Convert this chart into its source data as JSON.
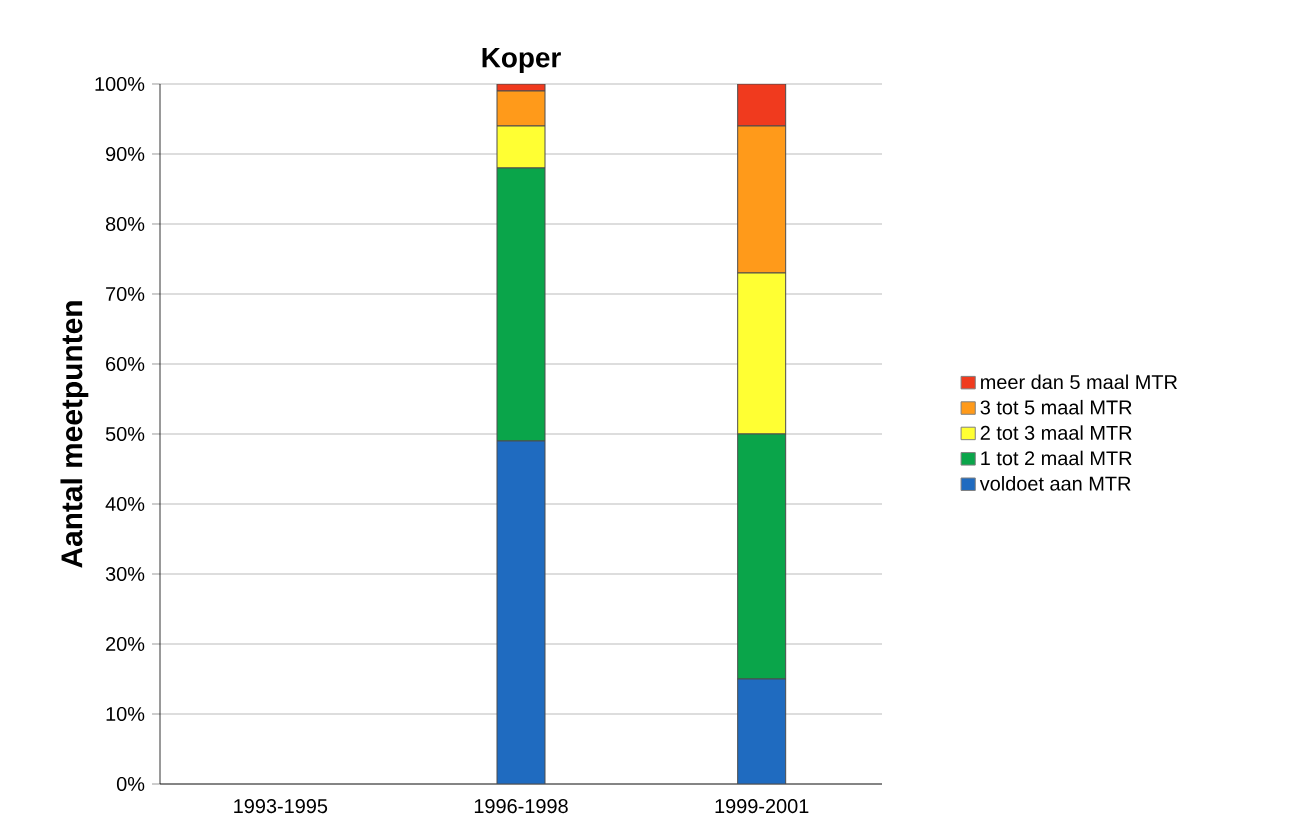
{
  "chart_data": {
    "type": "bar",
    "title": "Koper",
    "ylabel": "Aantal meetpunten",
    "stacked": true,
    "categories": [
      "1993-1995",
      "1996-1998",
      "1999-2001"
    ],
    "series": [
      {
        "name": "voldoet aan MTR",
        "color": "#1f6bc0",
        "values": [
          null,
          49,
          15
        ]
      },
      {
        "name": "1 tot 2 maal MTR",
        "color": "#0aa54a",
        "values": [
          null,
          39,
          35
        ]
      },
      {
        "name": "2 tot 3 maal MTR",
        "color": "#ffff33",
        "values": [
          null,
          6,
          23
        ]
      },
      {
        "name": "3 tot 5 maal MTR",
        "color": "#ff9a1a",
        "values": [
          null,
          5,
          21
        ]
      },
      {
        "name": "meer dan 5 maal MTR",
        "color": "#f03a1e",
        "values": [
          null,
          1,
          6
        ]
      }
    ],
    "ylim": [
      0,
      100
    ],
    "yticks": [
      {
        "value": 0,
        "label": "0%"
      },
      {
        "value": 10,
        "label": "10%"
      },
      {
        "value": 20,
        "label": "20%"
      },
      {
        "value": 30,
        "label": "30%"
      },
      {
        "value": 40,
        "label": "40%"
      },
      {
        "value": 50,
        "label": "50%"
      },
      {
        "value": 60,
        "label": "60%"
      },
      {
        "value": 70,
        "label": "70%"
      },
      {
        "value": 80,
        "label": "80%"
      },
      {
        "value": 90,
        "label": "90%"
      },
      {
        "value": 100,
        "label": "100%"
      }
    ],
    "grid": "y",
    "legend": "right"
  }
}
